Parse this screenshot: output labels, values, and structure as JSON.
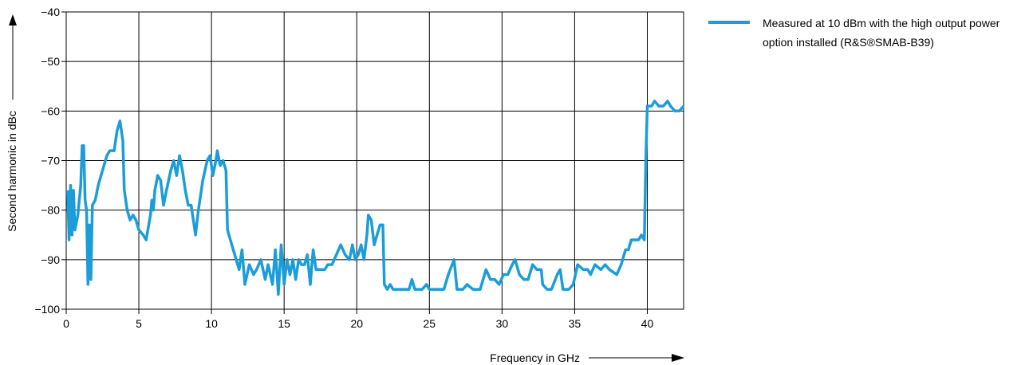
{
  "chart_data": {
    "type": "line",
    "x_label": "Frequency in GHz",
    "y_label": "Second harmonic in dBc",
    "xlim": [
      0,
      42.5
    ],
    "ylim": [
      -100,
      -40
    ],
    "xticks": [
      0,
      5,
      10,
      15,
      20,
      25,
      30,
      35,
      40
    ],
    "yticks": [
      {
        "value": -100,
        "label": "−100"
      },
      {
        "value": -90,
        "label": "−90"
      },
      {
        "value": -80,
        "label": "−80"
      },
      {
        "value": -70,
        "label": "−70"
      },
      {
        "value": -60,
        "label": "−60"
      },
      {
        "value": -50,
        "label": "−50"
      },
      {
        "value": -40,
        "label": "−40"
      }
    ],
    "grid": true,
    "legend": "top-right",
    "series": [
      {
        "name": "Measured at 10 dBm with the high output power option installed (R&S®SMAB-B39)",
        "color": "#1b9dd9",
        "x": [
          0.1,
          0.2,
          0.3,
          0.4,
          0.5,
          0.6,
          0.8,
          1.0,
          1.1,
          1.2,
          1.3,
          1.4,
          1.5,
          1.6,
          1.7,
          1.8,
          2.0,
          2.2,
          2.5,
          2.8,
          3.0,
          3.3,
          3.5,
          3.7,
          3.9,
          4.0,
          4.2,
          4.4,
          4.6,
          4.8,
          5.0,
          5.3,
          5.5,
          5.8,
          5.9,
          6.0,
          6.1,
          6.3,
          6.5,
          6.7,
          6.9,
          7.2,
          7.4,
          7.6,
          7.8,
          8.0,
          8.2,
          8.4,
          8.6,
          8.8,
          8.9,
          9.1,
          9.4,
          9.7,
          9.9,
          10.1,
          10.3,
          10.4,
          10.6,
          10.8,
          11.0,
          11.1,
          11.4,
          11.7,
          11.9,
          12.1,
          12.3,
          12.6,
          12.9,
          13.1,
          13.4,
          13.7,
          13.9,
          14.2,
          14.4,
          14.6,
          14.8,
          15.0,
          15.2,
          15.4,
          15.6,
          15.8,
          16.0,
          16.2,
          16.4,
          16.6,
          16.8,
          17.0,
          17.2,
          17.5,
          17.8,
          18.0,
          18.3,
          18.6,
          18.9,
          19.2,
          19.5,
          19.7,
          19.9,
          20.1,
          20.3,
          20.5,
          20.7,
          20.8,
          21.0,
          21.2,
          21.4,
          21.6,
          21.8,
          21.9,
          22.1,
          22.3,
          22.5,
          23.0,
          23.6,
          23.8,
          24.0,
          24.5,
          24.8,
          25.0,
          25.5,
          26.0,
          26.3,
          26.7,
          26.9,
          27.3,
          27.6,
          28.0,
          28.5,
          28.9,
          29.2,
          29.5,
          29.8,
          30.1,
          30.4,
          30.7,
          30.9,
          31.2,
          31.5,
          31.8,
          32.1,
          32.4,
          32.7,
          32.8,
          33.1,
          33.4,
          33.8,
          34.0,
          34.2,
          34.6,
          34.9,
          35.2,
          35.6,
          35.9,
          36.1,
          36.4,
          36.8,
          37.1,
          37.4,
          37.9,
          38.2,
          38.5,
          38.7,
          38.9,
          39.2,
          39.4,
          39.6,
          39.8,
          39.9,
          40.0,
          40.3,
          40.5,
          40.8,
          41.1,
          41.4,
          41.6,
          41.9,
          42.2,
          42.5
        ],
        "values": [
          -76,
          -86,
          -75,
          -85,
          -76,
          -84,
          -81,
          -75,
          -67,
          -67,
          -78,
          -80,
          -95,
          -83,
          -94,
          -79,
          -78,
          -75,
          -72,
          -69,
          -68,
          -68,
          -64,
          -62,
          -66,
          -76,
          -80,
          -82,
          -81,
          -82,
          -84,
          -85,
          -86,
          -81,
          -78,
          -80,
          -76,
          -73,
          -74,
          -79,
          -76,
          -72,
          -70,
          -73,
          -69,
          -72,
          -76,
          -79,
          -79,
          -83,
          -85,
          -80,
          -74,
          -70,
          -69,
          -73,
          -70,
          -68,
          -71,
          -70,
          -72,
          -84,
          -87,
          -90,
          -92,
          -88,
          -95,
          -91,
          -93,
          -92,
          -90,
          -94,
          -91,
          -95,
          -88,
          -97,
          -87,
          -95,
          -90,
          -93,
          -90,
          -94,
          -90,
          -91,
          -91,
          -89,
          -95,
          -88,
          -92,
          -92,
          -92,
          -91,
          -91,
          -89,
          -87,
          -89,
          -90,
          -87,
          -90,
          -89,
          -87,
          -90,
          -85,
          -81,
          -82,
          -87,
          -85,
          -83,
          -83,
          -95,
          -96,
          -95,
          -96,
          -96,
          -96,
          -94,
          -96,
          -96,
          -95,
          -96,
          -96,
          -96,
          -93,
          -90,
          -96,
          -96,
          -95,
          -96,
          -96,
          -92,
          -94,
          -94,
          -95,
          -93,
          -93,
          -91,
          -90,
          -93,
          -94,
          -94,
          -91,
          -92,
          -92,
          -95,
          -96,
          -96,
          -93,
          -92,
          -96,
          -96,
          -95,
          -91,
          -92,
          -92,
          -93,
          -91,
          -92,
          -91,
          -92,
          -93,
          -91,
          -88,
          -88,
          -86,
          -86,
          -86,
          -85,
          -86,
          -70,
          -59,
          -59,
          -58,
          -59,
          -59,
          -58,
          -59,
          -60,
          -60,
          -59
        ]
      }
    ]
  }
}
